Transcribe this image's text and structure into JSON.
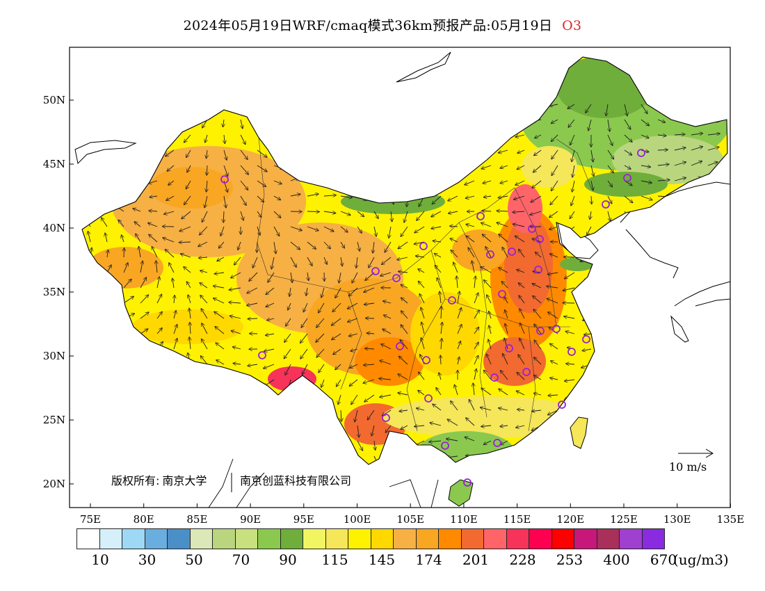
{
  "title": {
    "main": "2024年05月19日WRF/cmaq模式36km预报产品:05月19日",
    "species": "O3"
  },
  "axes": {
    "lon_ticks": [
      "75E",
      "80E",
      "85E",
      "90E",
      "95E",
      "100E",
      "105E",
      "110E",
      "115E",
      "120E",
      "125E",
      "130E",
      "135E"
    ],
    "lat_ticks": [
      "50N",
      "45N",
      "40N",
      "35N",
      "30N",
      "25N",
      "20N"
    ]
  },
  "copyright": {
    "label": "版权所有:",
    "org1": "南京大学",
    "org2": "南京创蓝科技有限公司"
  },
  "wind_scale": {
    "label": "10 m/s"
  },
  "legend": {
    "colors": [
      "#ffffff",
      "#d6f0fb",
      "#9dd8f4",
      "#6aaedf",
      "#4a8fc8",
      "#dce8b8",
      "#b9d67e",
      "#c8e07e",
      "#8bc94e",
      "#6fae3a",
      "#f2f562",
      "#f5e65a",
      "#fff200",
      "#ffd800",
      "#f7b043",
      "#f9a623",
      "#ff8a00",
      "#f26a30",
      "#ff6469",
      "#f7335a",
      "#ff0050",
      "#ff0000",
      "#c8177a",
      "#a8305a",
      "#a040d0",
      "#8a2be2"
    ],
    "labels": [
      "10",
      "30",
      "50",
      "70",
      "90",
      "115",
      "145",
      "174",
      "201",
      "228",
      "253",
      "400",
      "670"
    ],
    "unit": "(ug/m3)"
  }
}
